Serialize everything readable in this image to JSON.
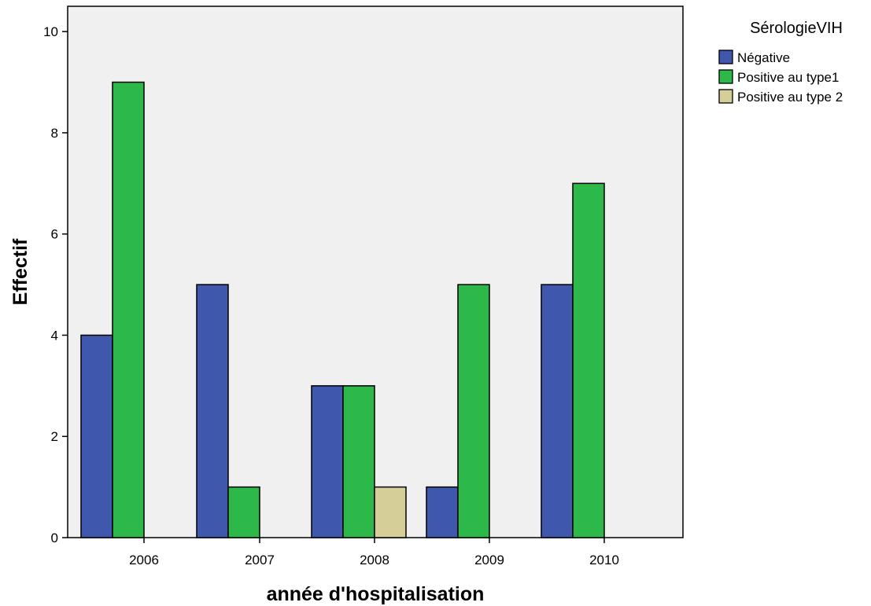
{
  "chart_data": {
    "type": "bar",
    "title": "",
    "xlabel": "année d'hospitalisation",
    "ylabel": "Effectif",
    "categories": [
      "2006",
      "2007",
      "2008",
      "2009",
      "2010"
    ],
    "ylim": [
      0,
      10.5
    ],
    "yticks": [
      0,
      2,
      4,
      6,
      8,
      10
    ],
    "grid": false,
    "background": "#f0f0f0",
    "legend": {
      "title": "SérologieVIH",
      "position": "right"
    },
    "series": [
      {
        "name": "Négative",
        "color": "#3f58ad",
        "values": [
          4,
          5,
          3,
          1,
          5
        ]
      },
      {
        "name": "Positive au type1",
        "color": "#2db84a",
        "values": [
          9,
          1,
          3,
          5,
          7
        ]
      },
      {
        "name": "Positive au type 2",
        "color": "#d6ce98",
        "values": [
          0,
          0,
          1,
          0,
          0
        ]
      }
    ]
  }
}
